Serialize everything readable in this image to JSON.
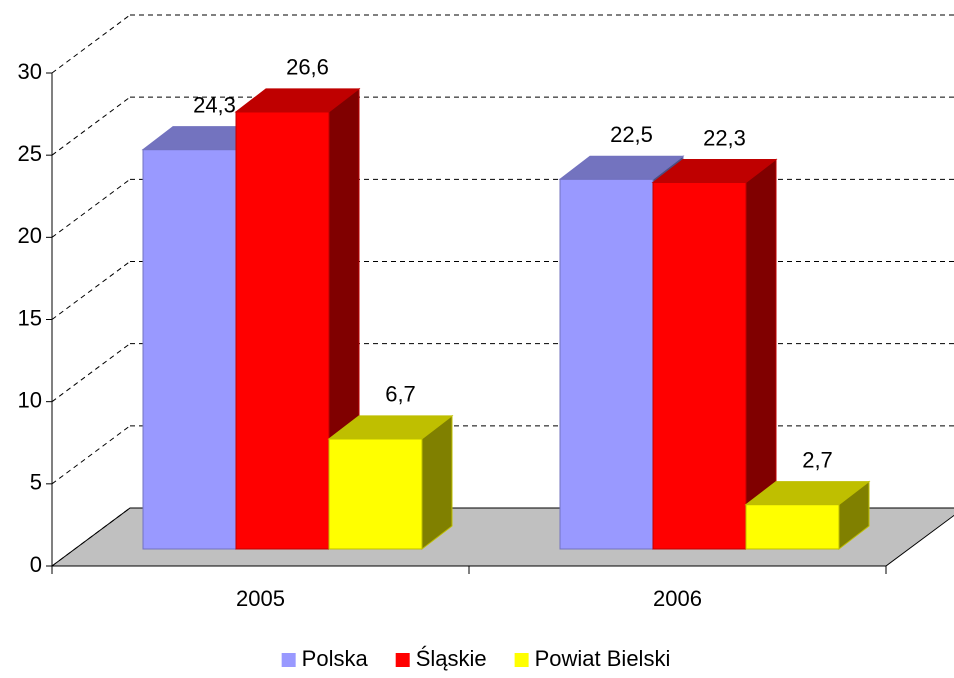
{
  "chart_data": {
    "type": "bar3d",
    "categories": [
      "2005",
      "2006"
    ],
    "series": [
      {
        "name": "Polska",
        "color": "#9999ff",
        "values": [
          24.3,
          22.5
        ],
        "value_labels": [
          "24,3",
          "22,5"
        ]
      },
      {
        "name": "Śląskie",
        "color": "#ff0000",
        "values": [
          26.6,
          22.3
        ],
        "value_labels": [
          "26,6",
          "22,3"
        ]
      },
      {
        "name": "Powiat Bielski",
        "color": "#ffff00",
        "values": [
          6.7,
          2.7
        ],
        "value_labels": [
          "6,7",
          "2,7"
        ]
      }
    ],
    "ylim": [
      0,
      30
    ],
    "yticks": [
      0,
      5,
      10,
      15,
      20,
      25,
      30
    ],
    "grid": true,
    "legend": "bottom"
  }
}
